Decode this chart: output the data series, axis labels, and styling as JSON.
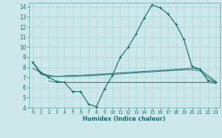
{
  "xlabel": "Humidex (Indice chaleur)",
  "background_color": "#cce8ea",
  "grid_color": "#aad4d8",
  "line_color": "#1a6b6b",
  "xlim": [
    -0.5,
    23.5
  ],
  "ylim": [
    4,
    14.4
  ],
  "xticks": [
    0,
    1,
    2,
    3,
    4,
    5,
    6,
    7,
    8,
    9,
    10,
    11,
    12,
    13,
    14,
    15,
    16,
    17,
    18,
    19,
    20,
    21,
    22,
    23
  ],
  "yticks": [
    4,
    5,
    6,
    7,
    8,
    9,
    10,
    11,
    12,
    13,
    14
  ],
  "main_series": {
    "x": [
      0,
      1,
      2,
      3,
      4,
      5,
      6,
      7,
      8,
      9,
      10,
      11,
      12,
      13,
      14,
      15,
      16,
      17,
      18,
      19,
      20,
      21,
      22,
      23
    ],
    "y": [
      8.5,
      7.5,
      7.0,
      6.6,
      6.5,
      5.6,
      5.6,
      4.35,
      4.1,
      5.85,
      7.2,
      9.0,
      10.0,
      11.35,
      12.9,
      14.2,
      13.9,
      13.3,
      12.25,
      10.75,
      8.1,
      7.8,
      6.7,
      6.5
    ]
  },
  "flat_series1": {
    "x": [
      0,
      1,
      2,
      3,
      4,
      5,
      6,
      7,
      8,
      9,
      10,
      11,
      12,
      13,
      14,
      15,
      16,
      17,
      18,
      19,
      20,
      21,
      22,
      23
    ],
    "y": [
      8.5,
      7.3,
      7.1,
      7.1,
      7.15,
      7.2,
      7.2,
      7.25,
      7.3,
      7.35,
      7.4,
      7.45,
      7.5,
      7.55,
      7.6,
      7.65,
      7.7,
      7.75,
      7.8,
      7.85,
      7.9,
      7.8,
      7.2,
      6.6
    ]
  },
  "flat_series2": {
    "x": [
      2,
      3,
      4,
      5,
      6,
      7,
      8,
      9,
      10,
      11,
      12,
      13,
      14,
      15,
      16,
      17,
      18,
      19,
      20,
      21,
      22,
      23
    ],
    "y": [
      6.65,
      6.5,
      6.5,
      6.5,
      6.5,
      6.5,
      6.5,
      6.5,
      6.5,
      6.5,
      6.5,
      6.5,
      6.5,
      6.5,
      6.5,
      6.5,
      6.5,
      6.5,
      6.5,
      6.5,
      6.5,
      6.4
    ]
  },
  "flat_series3": {
    "x": [
      0,
      1,
      2,
      3,
      4,
      5,
      6,
      7,
      8,
      9,
      10,
      11,
      12,
      13,
      14,
      15,
      16,
      17,
      18,
      19,
      20,
      21,
      22,
      23
    ],
    "y": [
      7.9,
      7.45,
      7.2,
      7.1,
      7.1,
      7.1,
      7.15,
      7.15,
      7.2,
      7.25,
      7.3,
      7.35,
      7.4,
      7.45,
      7.5,
      7.55,
      7.6,
      7.65,
      7.7,
      7.75,
      7.75,
      7.65,
      7.0,
      6.5
    ]
  }
}
